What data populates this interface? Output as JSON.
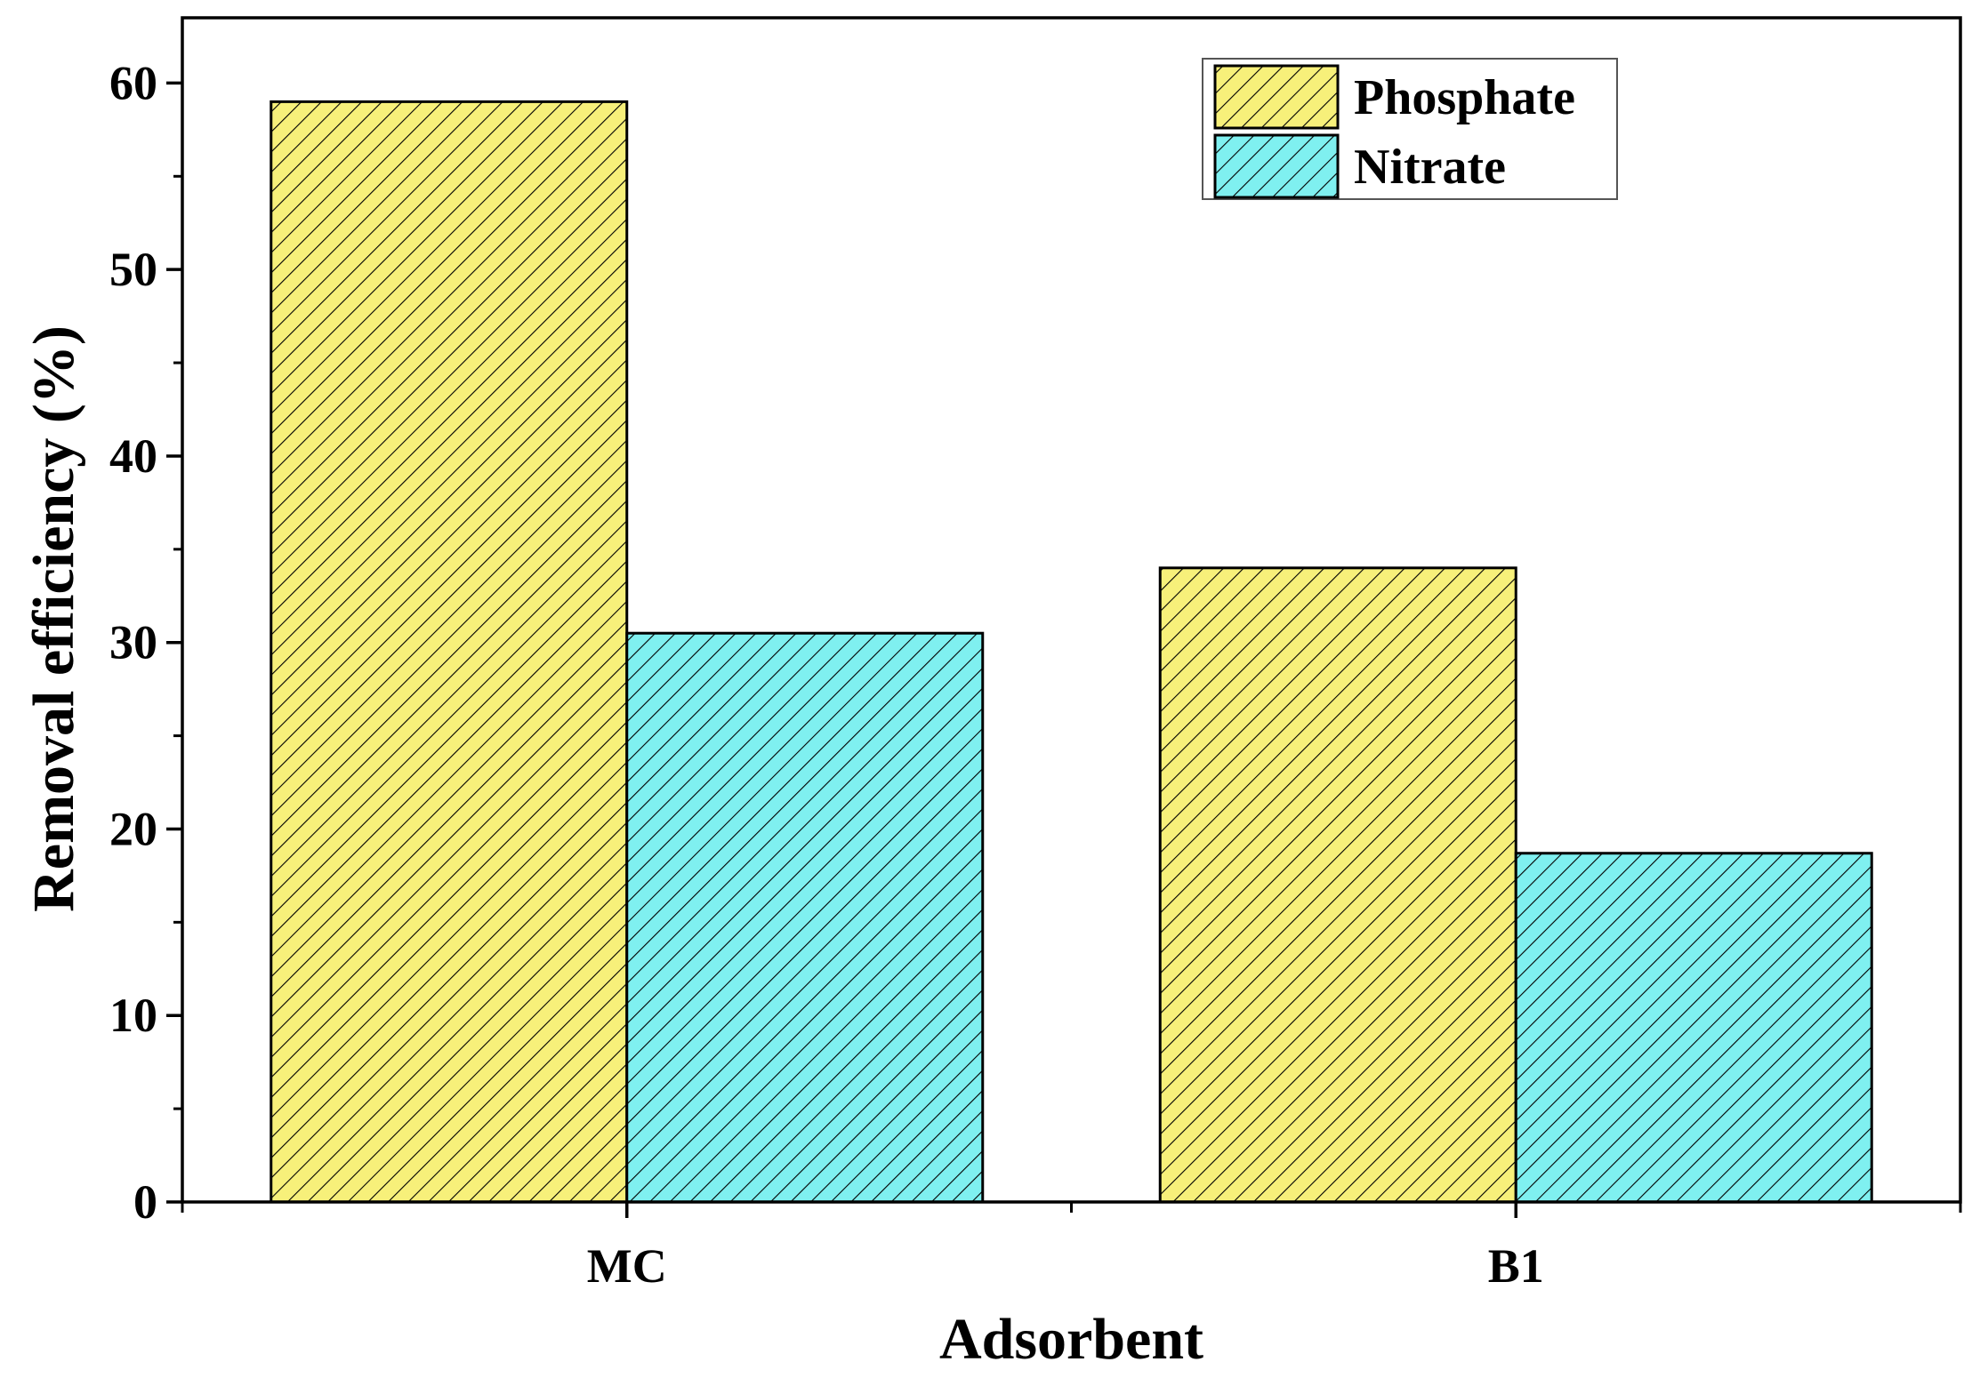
{
  "chart_data": {
    "type": "bar",
    "categories": [
      "MC",
      "B1"
    ],
    "series": [
      {
        "name": "Phosphate",
        "values": [
          59.0,
          34.0
        ],
        "color": "#f7f07a"
      },
      {
        "name": "Nitrate",
        "values": [
          30.5,
          18.7
        ],
        "color": "#7ff0f0"
      }
    ],
    "xlabel": "Adsorbent",
    "ylabel": "Removal efficiency (%)",
    "ylim": [
      0,
      63.5
    ],
    "yticks": [
      0,
      10,
      20,
      30,
      40,
      50,
      60
    ],
    "ytick_labels": [
      "0",
      "10",
      "20",
      "30",
      "40",
      "50",
      "60"
    ],
    "bar_pattern": "diagonal-hatch",
    "legend_position": "top-right",
    "grid": false
  }
}
